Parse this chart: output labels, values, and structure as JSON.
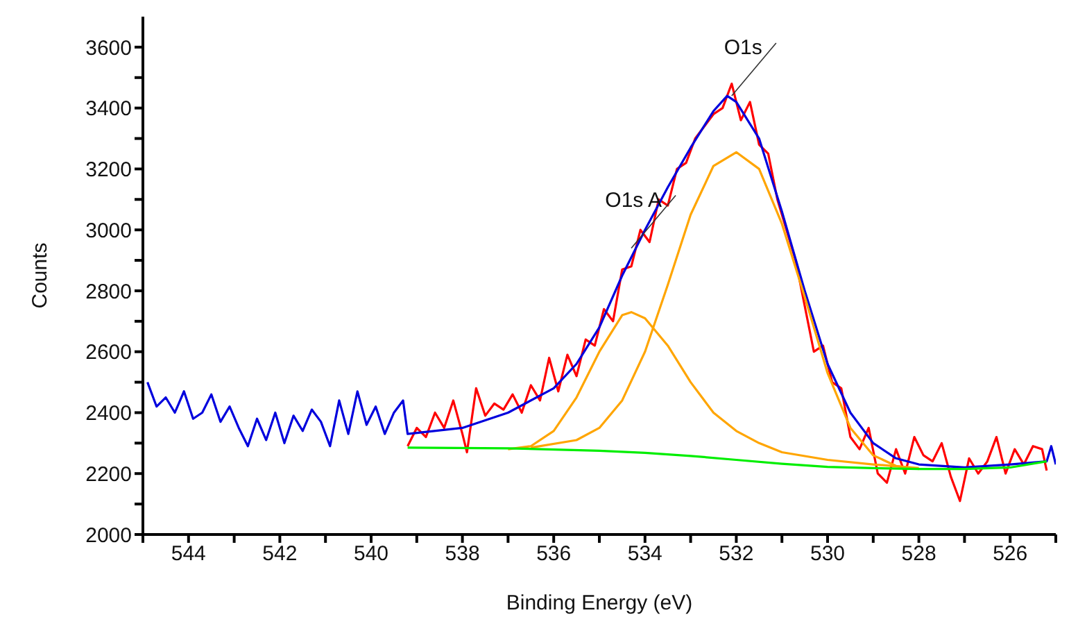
{
  "chart_data": {
    "type": "line",
    "xlabel": "Binding Energy (eV)",
    "ylabel": "Counts",
    "xlim": [
      545,
      525
    ],
    "ylim": [
      2000,
      3700
    ],
    "xticks": [
      {
        "value": 545,
        "label": null
      },
      544,
      {
        "value": 543,
        "label": null
      },
      542,
      {
        "value": 541,
        "label": null
      },
      540,
      {
        "value": 539,
        "label": null
      },
      538,
      {
        "value": 537,
        "label": null
      },
      536,
      {
        "value": 535,
        "label": null
      },
      534,
      {
        "value": 533,
        "label": null
      },
      532,
      {
        "value": 531,
        "label": null
      },
      530,
      {
        "value": 529,
        "label": null
      },
      528,
      {
        "value": 527,
        "label": null
      },
      526,
      {
        "value": 525,
        "label": null
      }
    ],
    "yticks": [
      2000,
      {
        "value": 2100,
        "label": null
      },
      2200,
      {
        "value": 2300,
        "label": null
      },
      2400,
      {
        "value": 2500,
        "label": null
      },
      2600,
      {
        "value": 2700,
        "label": null
      },
      2800,
      {
        "value": 2900,
        "label": null
      },
      3000,
      {
        "value": 3100,
        "label": null
      },
      3200,
      {
        "value": 3300,
        "label": null
      },
      3400,
      {
        "value": 3500,
        "label": null
      },
      3600
    ],
    "grid": false,
    "legend": false,
    "marker": "none",
    "line_style": "solid",
    "series": [
      {
        "color": "#ff0000",
        "x": [
          539.2,
          539.0,
          538.8,
          538.6,
          538.4,
          538.2,
          538.0,
          537.9,
          537.7,
          537.5,
          537.3,
          537.1,
          536.9,
          536.7,
          536.5,
          536.3,
          536.1,
          535.9,
          535.7,
          535.5,
          535.3,
          535.1,
          534.9,
          534.7,
          534.5,
          534.3,
          534.1,
          533.9,
          533.7,
          533.5,
          533.3,
          533.1,
          532.9,
          532.7,
          532.5,
          532.3,
          532.1,
          531.9,
          531.7,
          531.5,
          531.3,
          531.1,
          530.9,
          530.7,
          530.5,
          530.3,
          530.1,
          529.9,
          529.7,
          529.5,
          529.3,
          529.1,
          528.9,
          528.7,
          528.5,
          528.3,
          528.1,
          527.9,
          527.7,
          527.5,
          527.3,
          527.1,
          526.9,
          526.7,
          526.5,
          526.3,
          526.1,
          525.9,
          525.7,
          525.5,
          525.3,
          525.2
        ],
        "values": [
          2290,
          2350,
          2320,
          2400,
          2350,
          2440,
          2330,
          2270,
          2480,
          2390,
          2430,
          2410,
          2460,
          2400,
          2490,
          2440,
          2580,
          2470,
          2590,
          2520,
          2640,
          2620,
          2740,
          2700,
          2870,
          2880,
          3000,
          2960,
          3100,
          3080,
          3200,
          3220,
          3300,
          3340,
          3380,
          3400,
          3480,
          3360,
          3420,
          3280,
          3250,
          3100,
          3000,
          2900,
          2750,
          2600,
          2620,
          2500,
          2480,
          2320,
          2280,
          2350,
          2200,
          2170,
          2280,
          2200,
          2320,
          2260,
          2240,
          2300,
          2190,
          2110,
          2250,
          2200,
          2240,
          2320,
          2200,
          2280,
          2230,
          2290,
          2280,
          2210
        ]
      },
      {
        "color": "#0000dd",
        "x": [
          544.9,
          544.7,
          544.5,
          544.3,
          544.1,
          543.9,
          543.7,
          543.5,
          543.3,
          543.1,
          542.9,
          542.7,
          542.5,
          542.3,
          542.1,
          541.9,
          541.7,
          541.5,
          541.3,
          541.1,
          540.9,
          540.7,
          540.5,
          540.3,
          540.1,
          539.9,
          539.7,
          539.5,
          539.3,
          539.2,
          538,
          537,
          536,
          535.5,
          535,
          534.5,
          534,
          533.5,
          533,
          532.5,
          532.2,
          532,
          531.5,
          531,
          530.5,
          530,
          529.5,
          529,
          528.5,
          528,
          527,
          526,
          525.2,
          525.1,
          525.0
        ],
        "values": [
          2500,
          2420,
          2450,
          2400,
          2470,
          2380,
          2400,
          2460,
          2370,
          2420,
          2350,
          2290,
          2380,
          2310,
          2400,
          2300,
          2390,
          2340,
          2410,
          2370,
          2290,
          2440,
          2330,
          2470,
          2360,
          2420,
          2330,
          2400,
          2440,
          2330,
          2350,
          2400,
          2480,
          2560,
          2680,
          2850,
          3000,
          3140,
          3270,
          3390,
          3440,
          3420,
          3300,
          3060,
          2800,
          2560,
          2400,
          2300,
          2250,
          2230,
          2220,
          2230,
          2240,
          2290,
          2230
        ]
      },
      {
        "color": "#ffa500",
        "x": [
          536.5,
          535.5,
          535,
          534.5,
          534,
          533.5,
          533,
          532.5,
          532,
          531.5,
          531,
          530.5,
          530,
          529.5,
          529,
          528.5,
          528
        ],
        "values": [
          2285,
          2310,
          2350,
          2440,
          2600,
          2820,
          3050,
          3210,
          3255,
          3200,
          3020,
          2780,
          2530,
          2350,
          2260,
          2225,
          2215
        ]
      },
      {
        "color": "#ffa500",
        "x": [
          537,
          536.5,
          536,
          535.5,
          535,
          534.5,
          534.3,
          534,
          533.5,
          533,
          532.5,
          532,
          531.5,
          531,
          530,
          529,
          528
        ],
        "values": [
          2280,
          2290,
          2340,
          2450,
          2600,
          2720,
          2730,
          2710,
          2620,
          2500,
          2400,
          2340,
          2300,
          2270,
          2245,
          2230,
          2218
        ]
      },
      {
        "color": "#00ee00",
        "x": [
          539.2,
          537,
          535,
          534,
          533,
          532,
          531,
          530,
          529,
          528,
          527,
          526,
          525.2
        ],
        "values": [
          2285,
          2283,
          2275,
          2268,
          2258,
          2245,
          2232,
          2222,
          2218,
          2215,
          2215,
          2220,
          2240
        ]
      }
    ],
    "annotations": [
      {
        "text": "O1s",
        "x": 532.1,
        "y": 3440
      },
      {
        "text": "O1s A",
        "x": 534.3,
        "y": 2940
      }
    ]
  }
}
